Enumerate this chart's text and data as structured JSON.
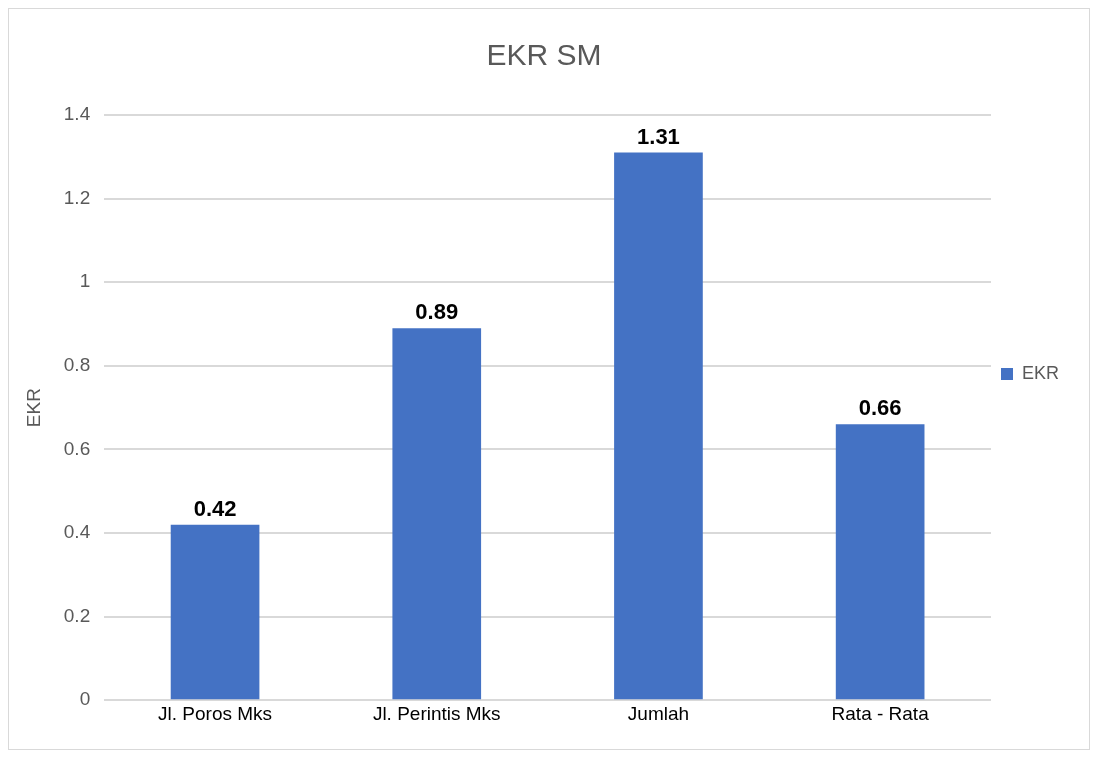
{
  "chart_data": {
    "type": "bar",
    "title": "EKR SM",
    "ylabel": "EKR",
    "categories": [
      "Jl. Poros Mks",
      "Jl. Perintis Mks",
      "Jumlah",
      "Rata - Rata"
    ],
    "series": [
      {
        "name": "EKR",
        "color": "#4472c4",
        "values": [
          0.42,
          0.89,
          1.31,
          0.66
        ]
      }
    ],
    "ylim": [
      0,
      1.4
    ],
    "yticks": [
      0,
      0.2,
      0.4,
      0.6,
      0.8,
      1,
      1.2,
      1.4
    ],
    "grid": "y",
    "legend": "right",
    "data_labels": true
  }
}
